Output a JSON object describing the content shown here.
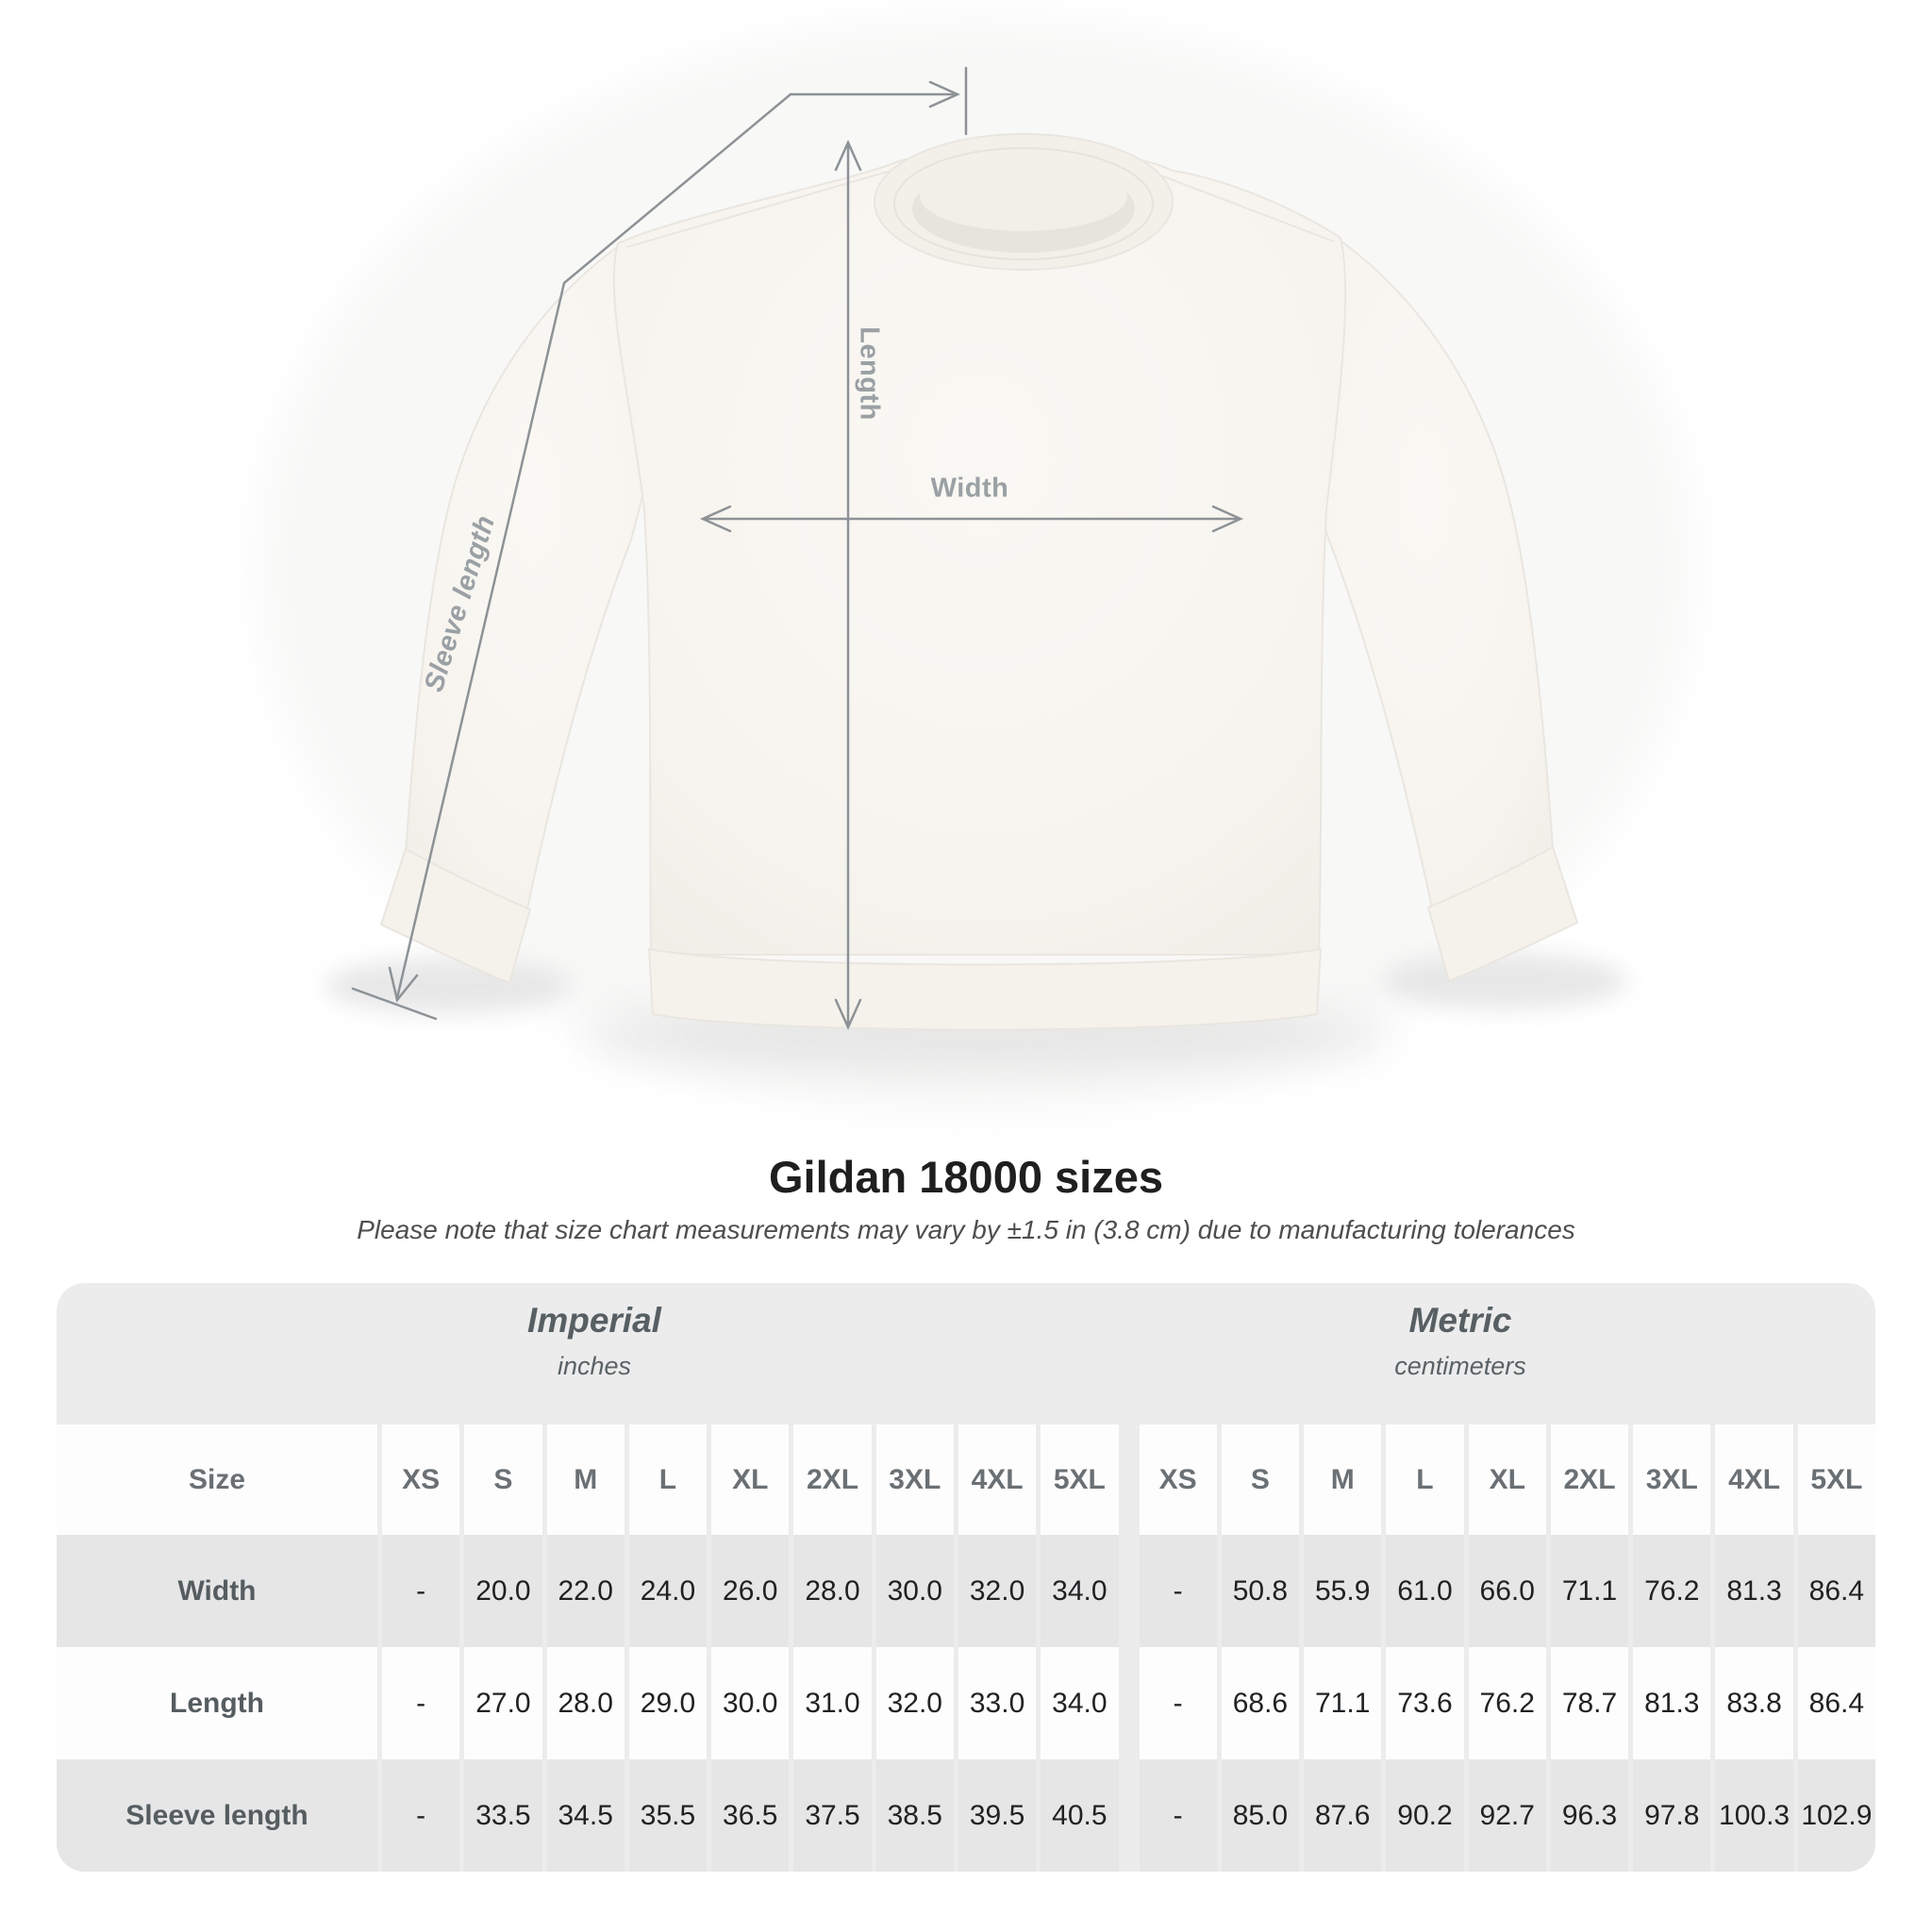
{
  "diagram": {
    "length_label": "Length",
    "width_label": "Width",
    "sleeve_label": "Sleeve length",
    "garment": "white crewneck sweatshirt, front view, flat lay photo"
  },
  "heading": {
    "title": "Gildan 18000 sizes",
    "subtitle": "Please note that size chart measurements may vary by ±1.5 in (3.8 cm) due to manufacturing tolerances"
  },
  "table": {
    "unit_systems": [
      {
        "name": "Imperial",
        "unit": "inches"
      },
      {
        "name": "Metric",
        "unit": "centimeters"
      }
    ],
    "size_column_label": "Size",
    "sizes": [
      "XS",
      "S",
      "M",
      "L",
      "XL",
      "2XL",
      "3XL",
      "4XL",
      "5XL"
    ],
    "rows": [
      {
        "label": "Width",
        "imperial": [
          "-",
          "20.0",
          "22.0",
          "24.0",
          "26.0",
          "28.0",
          "30.0",
          "32.0",
          "34.0"
        ],
        "metric": [
          "-",
          "50.8",
          "55.9",
          "61.0",
          "66.0",
          "71.1",
          "76.2",
          "81.3",
          "86.4"
        ]
      },
      {
        "label": "Length",
        "imperial": [
          "-",
          "27.0",
          "28.0",
          "29.0",
          "30.0",
          "31.0",
          "32.0",
          "33.0",
          "34.0"
        ],
        "metric": [
          "-",
          "68.6",
          "71.1",
          "73.6",
          "76.2",
          "78.7",
          "81.3",
          "83.8",
          "86.4"
        ]
      },
      {
        "label": "Sleeve length",
        "imperial": [
          "-",
          "33.5",
          "34.5",
          "35.5",
          "36.5",
          "37.5",
          "38.5",
          "39.5",
          "40.5"
        ],
        "metric": [
          "-",
          "85.0",
          "87.6",
          "90.2",
          "92.7",
          "96.3",
          "97.8",
          "100.3",
          "102.9"
        ]
      }
    ]
  },
  "chart_data": {
    "type": "table",
    "title": "Gildan 18000 sizes",
    "note": "Please note that size chart measurements may vary by ±1.5 in (3.8 cm) due to manufacturing tolerances",
    "unit_groups": [
      "Imperial (inches)",
      "Metric (centimeters)"
    ],
    "sizes": [
      "XS",
      "S",
      "M",
      "L",
      "XL",
      "2XL",
      "3XL",
      "4XL",
      "5XL"
    ],
    "rows": [
      {
        "measurement": "Width",
        "imperial_in": [
          null,
          20.0,
          22.0,
          24.0,
          26.0,
          28.0,
          30.0,
          32.0,
          34.0
        ],
        "metric_cm": [
          null,
          50.8,
          55.9,
          61.0,
          66.0,
          71.1,
          76.2,
          81.3,
          86.4
        ]
      },
      {
        "measurement": "Length",
        "imperial_in": [
          null,
          27.0,
          28.0,
          29.0,
          30.0,
          31.0,
          32.0,
          33.0,
          34.0
        ],
        "metric_cm": [
          null,
          68.6,
          71.1,
          73.6,
          76.2,
          78.7,
          81.3,
          83.8,
          86.4
        ]
      },
      {
        "measurement": "Sleeve length",
        "imperial_in": [
          null,
          33.5,
          34.5,
          35.5,
          36.5,
          37.5,
          38.5,
          39.5,
          40.5
        ],
        "metric_cm": [
          null,
          85.0,
          87.6,
          90.2,
          92.7,
          96.3,
          97.8,
          100.3,
          102.9
        ]
      }
    ]
  },
  "colors": {
    "page_bg": "#ffffff",
    "panel_bg": "#ececec",
    "row_gray": "#e6e6e6",
    "row_white": "#fdfdfd",
    "annotation_line": "#8d9296",
    "annotation_label": "#9aa0a4",
    "title_text": "#1f1f1f",
    "table_header_text": "#6a7074",
    "value_text": "#1f2123"
  }
}
